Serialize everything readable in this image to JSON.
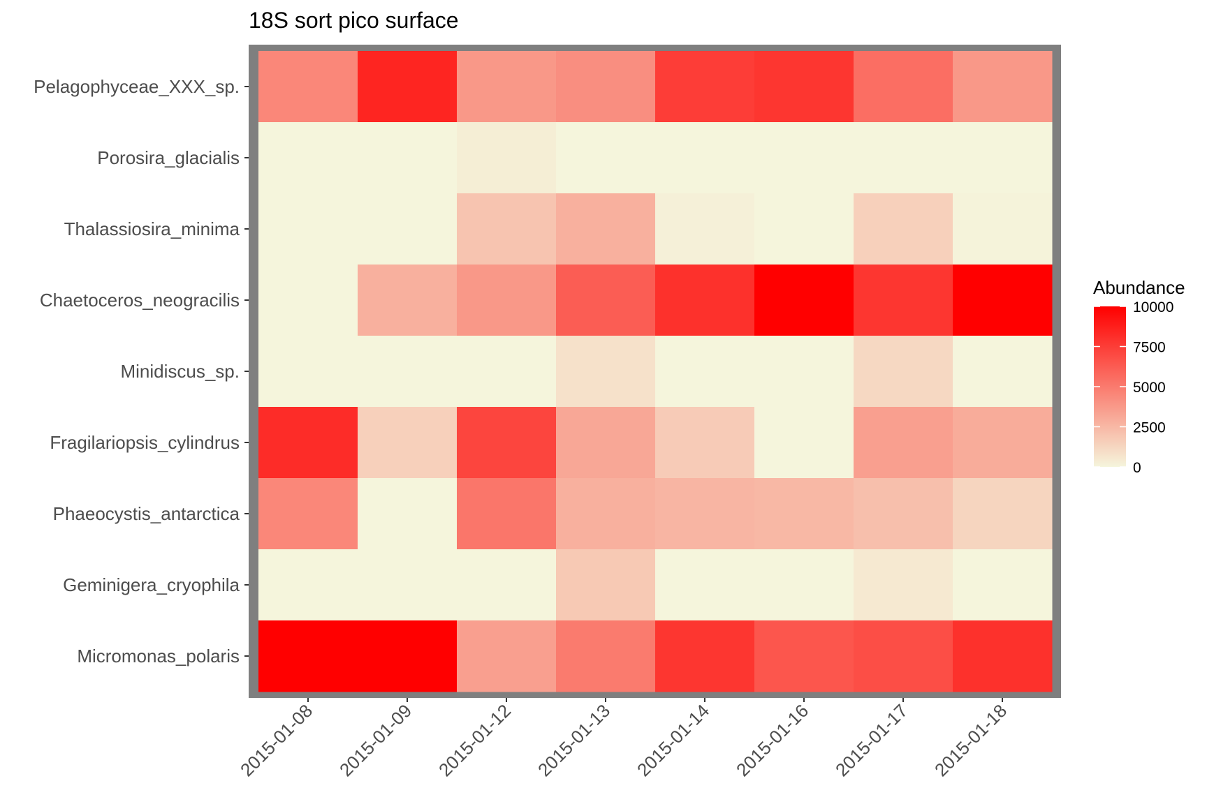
{
  "chart_data": {
    "type": "heatmap",
    "title": "18S sort pico surface",
    "xlabel": "",
    "ylabel": "",
    "x": [
      "2015-01-08",
      "2015-01-09",
      "2015-01-12",
      "2015-01-13",
      "2015-01-14",
      "2015-01-16",
      "2015-01-17",
      "2015-01-18"
    ],
    "y": [
      "Pelagophyceae_XXX_sp.",
      "Porosira_glacialis",
      "Thalassiosira_minima",
      "Chaetoceros_neogracilis",
      "Minidiscus_sp.",
      "Fragilariopsis_cylindrus",
      "Phaeocystis_antarctica",
      "Geminigera_cryophila",
      "Micromonas_polaris"
    ],
    "values": [
      [
        4500,
        8500,
        3800,
        4200,
        7500,
        7800,
        5500,
        3800
      ],
      [
        0,
        0,
        300,
        0,
        0,
        0,
        0,
        0
      ],
      [
        0,
        0,
        2000,
        2800,
        200,
        0,
        1500,
        100
      ],
      [
        0,
        2800,
        3800,
        6200,
        8000,
        10000,
        7800,
        10000
      ],
      [
        0,
        0,
        0,
        800,
        0,
        0,
        1200,
        0
      ],
      [
        8200,
        1500,
        7200,
        3200,
        1700,
        0,
        3500,
        3000
      ],
      [
        4500,
        0,
        5200,
        2800,
        2600,
        2500,
        2200,
        1300
      ],
      [
        0,
        0,
        0,
        1800,
        0,
        0,
        500,
        0
      ],
      [
        10000,
        10000,
        3500,
        5000,
        7800,
        6500,
        6800,
        8000
      ]
    ],
    "zlim": [
      0,
      10000
    ],
    "legend": {
      "title": "Abundance",
      "ticks": [
        0,
        2500,
        5000,
        7500,
        10000
      ],
      "tick_labels": [
        "0",
        "2500",
        "5000",
        "7500",
        "10000"
      ],
      "position": "right"
    },
    "colors": {
      "low": "#f5f5dc",
      "high": "#ff0000",
      "panel_border": "#7f7f7f"
    }
  }
}
